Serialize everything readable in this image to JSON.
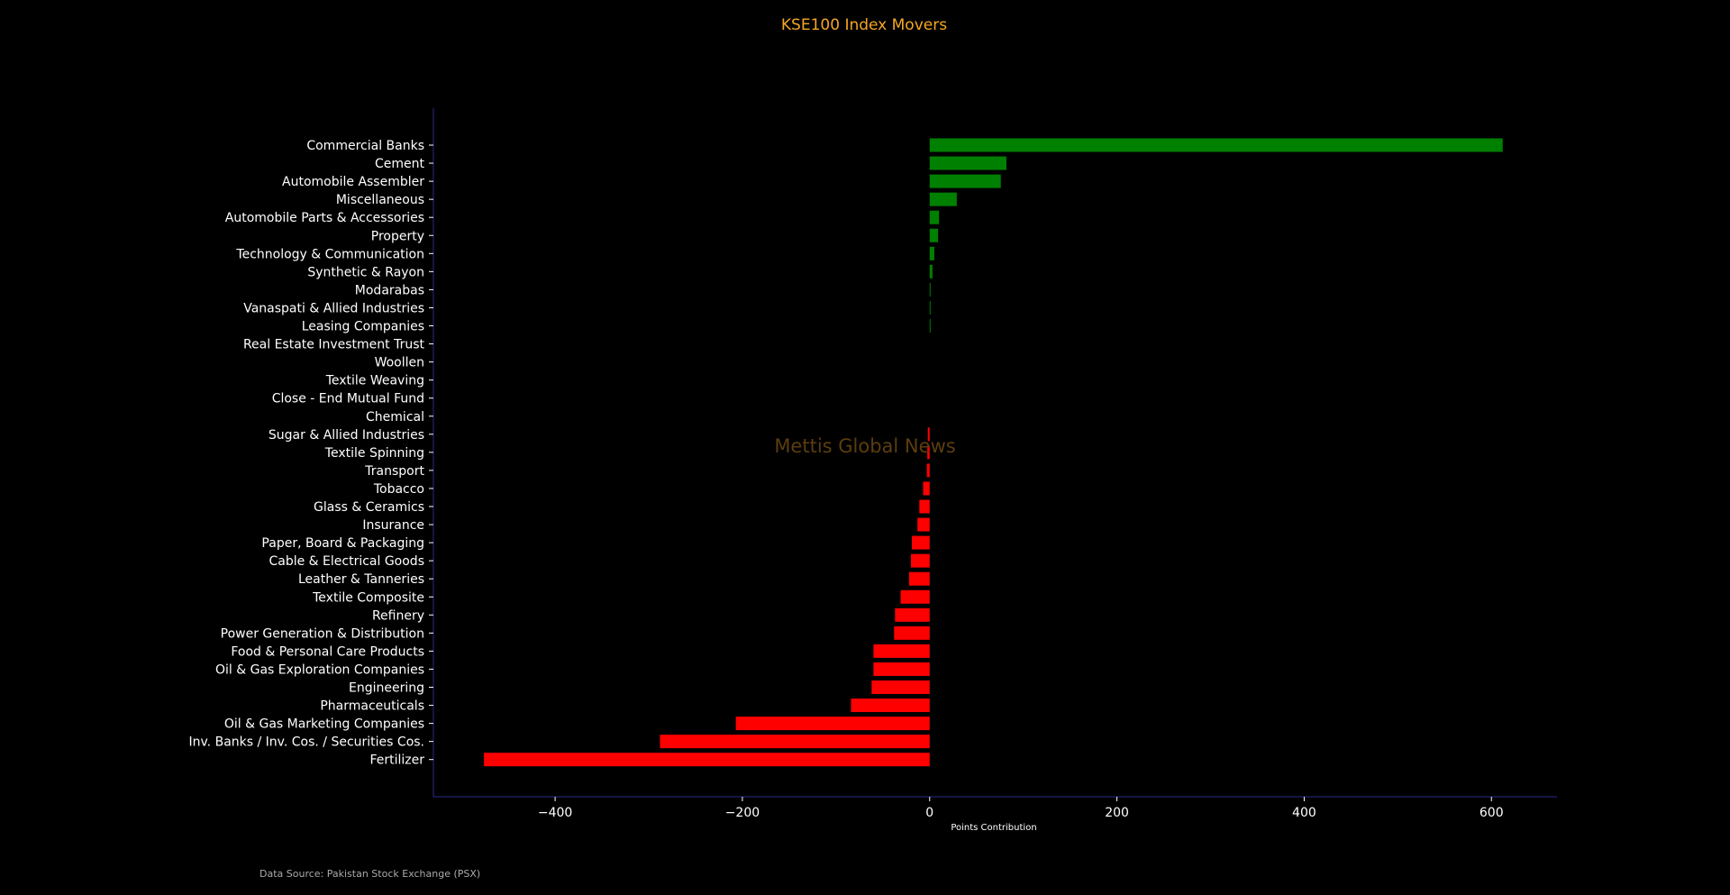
{
  "chart_data": {
    "type": "bar",
    "orientation": "horizontal",
    "title": "KSE100 Index Movers",
    "xlabel": "Points Contribution",
    "ylabel": "",
    "xlim": [
      -530,
      670
    ],
    "xticks": [
      -400,
      -200,
      0,
      200,
      400,
      600
    ],
    "grid": false,
    "watermark": "Mettis Global News",
    "source": "Data Source: Pakistan Stock Exchange (PSX)",
    "colors": {
      "positive": "#008000",
      "negative": "#ff0000",
      "title": "#f5a623",
      "axis": "#2a2a8a"
    },
    "categories": [
      "Commercial Banks",
      "Cement",
      "Automobile Assembler",
      "Miscellaneous",
      "Automobile Parts & Accessories",
      "Property",
      "Technology & Communication",
      "Synthetic & Rayon",
      "Modarabas",
      "Vanaspati & Allied Industries",
      "Leasing Companies",
      "Real Estate Investment Trust",
      "Woollen",
      "Textile Weaving",
      "Close - End Mutual Fund",
      "Chemical",
      "Sugar & Allied Industries",
      "Textile Spinning",
      "Transport",
      "Tobacco",
      "Glass & Ceramics",
      "Insurance",
      "Paper, Board & Packaging",
      "Cable & Electrical Goods",
      "Leather & Tanneries",
      "Textile Composite",
      "Refinery",
      "Power Generation & Distribution",
      "Food & Personal Care Products",
      "Oil & Gas Exploration Companies",
      "Engineering",
      "Pharmaceuticals",
      "Oil & Gas Marketing Companies",
      "Inv. Banks / Inv. Cos. / Securities Cos.",
      "Fertilizer"
    ],
    "values": [
      612,
      82,
      76,
      29,
      10,
      9,
      5,
      3,
      0.5,
      0.4,
      0.3,
      0,
      0,
      0,
      0,
      0,
      -2,
      -2.5,
      -3,
      -7,
      -11,
      -13,
      -19,
      -20,
      -22,
      -31,
      -37,
      -38,
      -60,
      -60,
      -62,
      -84,
      -207,
      -288,
      -476
    ]
  }
}
